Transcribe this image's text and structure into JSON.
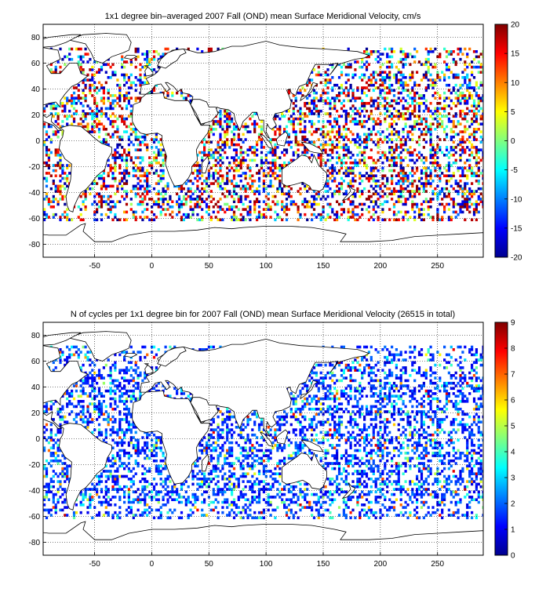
{
  "panels": [
    {
      "title": "1x1 degree bin–averaged 2007 Fall (OND) mean Surface Meridional Velocity, cm/s",
      "xticks": [
        "-50",
        "0",
        "50",
        "100",
        "150",
        "200",
        "250"
      ],
      "yticks": [
        "80",
        "60",
        "40",
        "20",
        "0",
        "-20",
        "-40",
        "-60",
        "-80"
      ],
      "colorbar_ticks": [
        "20",
        "15",
        "10",
        "5",
        "0",
        "-5",
        "-10",
        "-15",
        "-20"
      ]
    },
    {
      "title": "N of cycles per 1x1 degree bin for 2007 Fall (OND) mean Surface Meridional Velocity (26515 in total)",
      "xticks": [
        "-50",
        "0",
        "50",
        "100",
        "150",
        "200",
        "250"
      ],
      "yticks": [
        "80",
        "60",
        "40",
        "20",
        "0",
        "-20",
        "-40",
        "-60",
        "-80"
      ],
      "colorbar_ticks": [
        "9",
        "8",
        "7",
        "6",
        "5",
        "4",
        "3",
        "2",
        "1",
        "0"
      ]
    }
  ],
  "chart_data": [
    {
      "type": "heatmap",
      "title": "1x1 degree bin–averaged 2007 Fall (OND) mean Surface Meridional Velocity, cm/s",
      "xlim": [
        -95,
        290
      ],
      "ylim": [
        -90,
        90
      ],
      "xticks": [
        -50,
        0,
        50,
        100,
        150,
        200,
        250
      ],
      "yticks": [
        -80,
        -60,
        -40,
        -20,
        0,
        20,
        40,
        60,
        80
      ],
      "grid": true,
      "colorbar": {
        "min": -20,
        "max": 20,
        "colormap": "jet",
        "ticks": [
          -20,
          -15,
          -10,
          -5,
          0,
          5,
          10,
          15,
          20
        ]
      }
    },
    {
      "type": "heatmap",
      "title": "N of cycles per 1x1 degree bin for 2007 Fall (OND) mean Surface Meridional Velocity (26515 in total)",
      "total": 26515,
      "xlim": [
        -95,
        290
      ],
      "ylim": [
        -90,
        90
      ],
      "xticks": [
        -50,
        0,
        50,
        100,
        150,
        200,
        250
      ],
      "yticks": [
        -80,
        -60,
        -40,
        -20,
        0,
        20,
        40,
        60,
        80
      ],
      "grid": true,
      "colorbar": {
        "min": 0,
        "max": 9,
        "colormap": "jet",
        "ticks": [
          0,
          1,
          2,
          3,
          4,
          5,
          6,
          7,
          8,
          9
        ]
      }
    }
  ]
}
